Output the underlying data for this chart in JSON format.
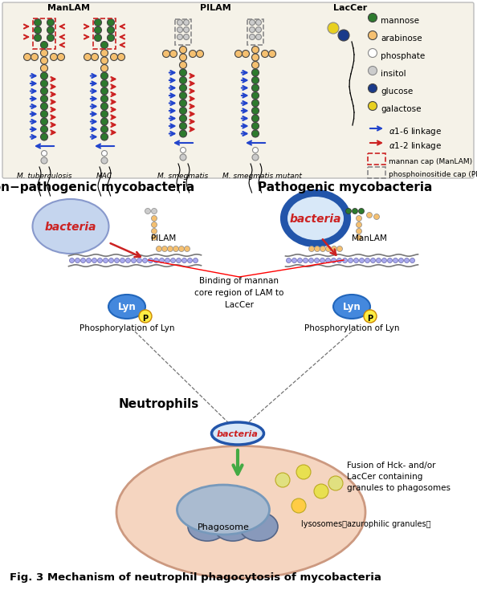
{
  "bg_color": "#f5f2e8",
  "white": "#ffffff",
  "mannose_color": "#2d7a2d",
  "arabinose_color": "#f5c070",
  "phosphate_color": "#ffffff",
  "phosphate_edge": "#888888",
  "inositol_color": "#cccccc",
  "glucose_color": "#1a3a8a",
  "galactose_color": "#e8d020",
  "blue_arrow": "#2244cc",
  "red_arrow": "#cc2222",
  "title": "Fig. 3 Mechanism of neutrophil phagocytosis of mycobacteria",
  "panel1_title": "ManLAM",
  "panel2_title": "PILAM",
  "panel3_title": "LacCer",
  "label1": "M. tuberculosis",
  "label2": "MAC",
  "label3": "M. smegmatis",
  "label4": "M. smegmatis mutant",
  "legend_items": [
    "mannose",
    "arabinose",
    "phosphate",
    "insitol",
    "glucose",
    "galactose"
  ],
  "legend_colors": [
    "#2d7a2d",
    "#f5c070",
    "#ffffff",
    "#cccccc",
    "#1a3a8a",
    "#e8d020"
  ],
  "section2_left": "Non−pathogenic mycobacteria",
  "section2_right": "Pathogenic mycobacteria",
  "pilam_label": "PILAM",
  "manlam_label": "ManLAM",
  "binding_text": "Binding of mannan\ncore region of LAM to\nLacCer",
  "phospho_left": "Phosphorylation of Lyn",
  "phospho_right": "Phosphorylation of Lyn",
  "neutrophils_label": "Neutrophils",
  "phagosome_label": "Phagosome",
  "fusion_text": "Fusion of Hck- and/or\nLacCer containing\ngranules to phagosomes",
  "lysosomes_text": "lysosomes（azurophilic granules）",
  "bacteria_color": "#cc2222",
  "lyn_color": "#4488dd",
  "neutrophil_fill": "#f5d5c0",
  "phagosome_fill": "#aabbd0"
}
